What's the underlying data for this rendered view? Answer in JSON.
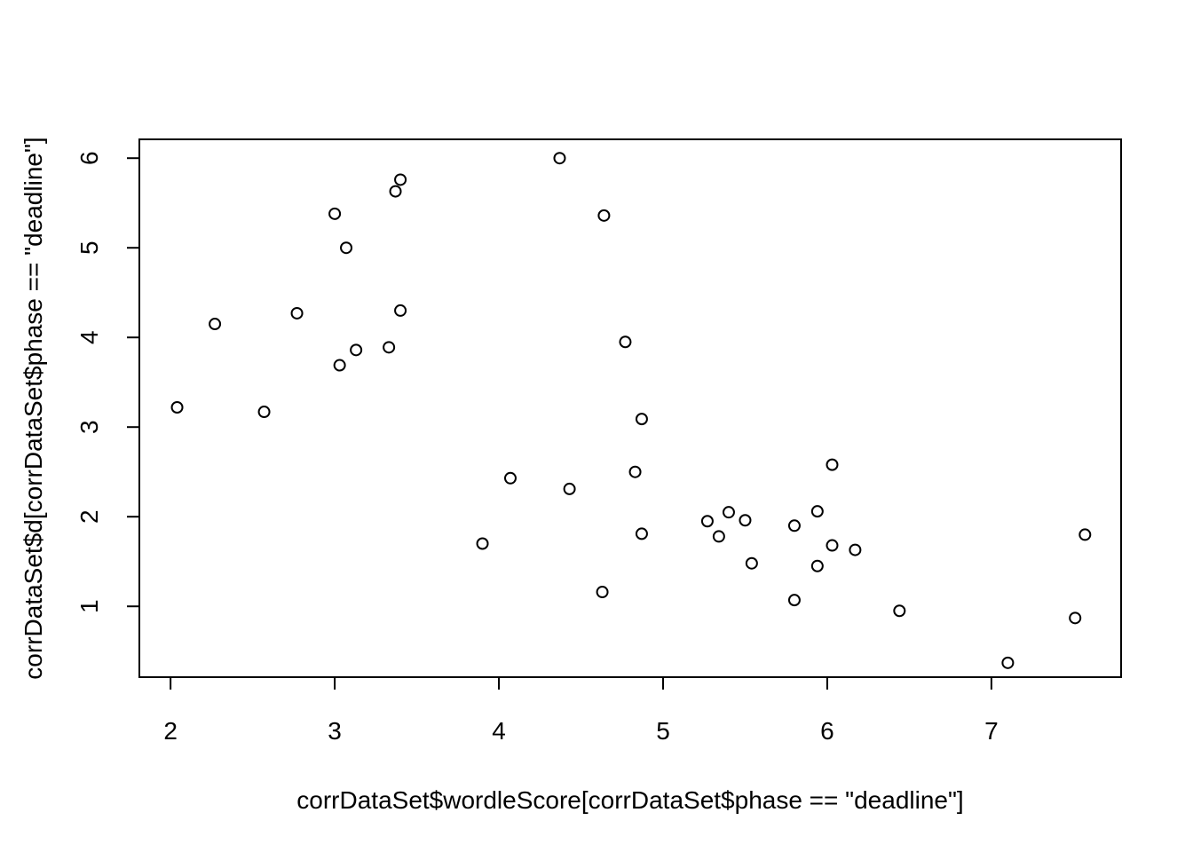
{
  "chart_data": {
    "type": "scatter",
    "title": "",
    "xlabel": "corrDataSet$wordleScore[corrDataSet$phase == \"deadline\"]",
    "ylabel": "corrDataSet$d[corrDataSet$phase == \"deadline\"]",
    "xlim": [
      1.81,
      7.79
    ],
    "ylim": [
      0.21,
      6.21
    ],
    "xticks": [
      2,
      3,
      4,
      5,
      6,
      7
    ],
    "yticks": [
      1,
      2,
      3,
      4,
      5,
      6
    ],
    "xtick_labels": [
      "2",
      "3",
      "4",
      "5",
      "6",
      "7"
    ],
    "ytick_labels": [
      "1",
      "2",
      "3",
      "4",
      "5",
      "6"
    ],
    "grid": false,
    "legend": "none",
    "marker": "open-circle",
    "points": [
      {
        "x": 2.04,
        "y": 3.22
      },
      {
        "x": 2.27,
        "y": 4.15
      },
      {
        "x": 2.57,
        "y": 3.17
      },
      {
        "x": 2.77,
        "y": 4.27
      },
      {
        "x": 3.0,
        "y": 5.38
      },
      {
        "x": 3.03,
        "y": 3.69
      },
      {
        "x": 3.07,
        "y": 5.0
      },
      {
        "x": 3.13,
        "y": 3.86
      },
      {
        "x": 3.33,
        "y": 3.89
      },
      {
        "x": 3.37,
        "y": 5.63
      },
      {
        "x": 3.4,
        "y": 5.76
      },
      {
        "x": 3.4,
        "y": 4.3
      },
      {
        "x": 3.9,
        "y": 1.7
      },
      {
        "x": 4.07,
        "y": 2.43
      },
      {
        "x": 4.37,
        "y": 6.0
      },
      {
        "x": 4.43,
        "y": 2.31
      },
      {
        "x": 4.63,
        "y": 1.16
      },
      {
        "x": 4.64,
        "y": 5.36
      },
      {
        "x": 4.77,
        "y": 3.95
      },
      {
        "x": 4.83,
        "y": 2.5
      },
      {
        "x": 4.87,
        "y": 3.09
      },
      {
        "x": 4.87,
        "y": 1.81
      },
      {
        "x": 5.27,
        "y": 1.95
      },
      {
        "x": 5.34,
        "y": 1.78
      },
      {
        "x": 5.4,
        "y": 2.05
      },
      {
        "x": 5.5,
        "y": 1.96
      },
      {
        "x": 5.54,
        "y": 1.48
      },
      {
        "x": 5.8,
        "y": 1.9
      },
      {
        "x": 5.8,
        "y": 1.07
      },
      {
        "x": 5.94,
        "y": 2.06
      },
      {
        "x": 5.94,
        "y": 1.45
      },
      {
        "x": 6.03,
        "y": 2.58
      },
      {
        "x": 6.03,
        "y": 1.68
      },
      {
        "x": 6.17,
        "y": 1.63
      },
      {
        "x": 6.44,
        "y": 0.95
      },
      {
        "x": 7.1,
        "y": 0.37
      },
      {
        "x": 7.51,
        "y": 0.87
      },
      {
        "x": 7.57,
        "y": 1.8
      }
    ]
  }
}
